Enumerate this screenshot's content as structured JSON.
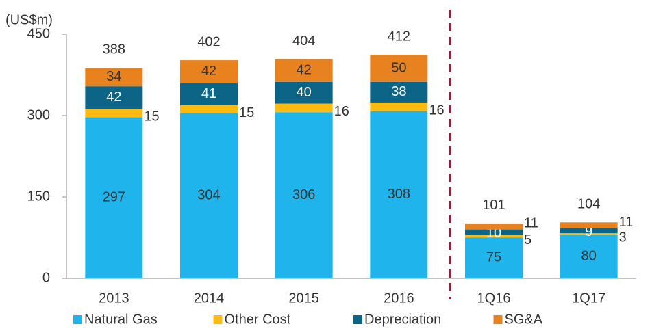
{
  "chart_data": {
    "type": "stacked_bar",
    "y_axis_label": "(US$m)",
    "categories": [
      "2013",
      "2014",
      "2015",
      "2016",
      "1Q16",
      "1Q17"
    ],
    "series": [
      {
        "name": "Natural Gas",
        "color": "#1fb5ec",
        "values": [
          297,
          304,
          306,
          308,
          75,
          80
        ]
      },
      {
        "name": "Other Cost",
        "color": "#fdbb10",
        "values": [
          15,
          15,
          16,
          16,
          5,
          3
        ]
      },
      {
        "name": "Depreciation",
        "color": "#0c6486",
        "values": [
          42,
          41,
          40,
          38,
          10,
          9
        ]
      },
      {
        "name": "SG&A",
        "color": "#e8821e",
        "values": [
          34,
          42,
          42,
          50,
          11,
          11
        ]
      }
    ],
    "totals": [
      388,
      402,
      404,
      412,
      101,
      104
    ],
    "ylim": [
      0,
      450
    ],
    "yticks": [
      0,
      150,
      300,
      450
    ],
    "legend": "bottom"
  }
}
